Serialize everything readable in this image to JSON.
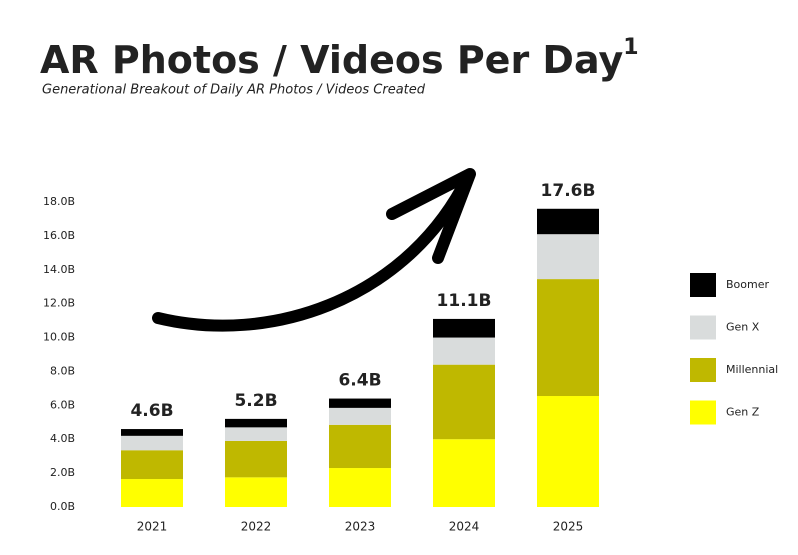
{
  "chart_data": {
    "type": "stacked-bar",
    "title": "AR Photos / Videos Per Day",
    "title_note": "1",
    "subtitle": "Generational Breakout of Daily AR Photos / Videos Created",
    "categories": [
      "2021",
      "2022",
      "2023",
      "2024",
      "2025"
    ],
    "series": [
      {
        "name": "Gen Z",
        "color": "#ffff00",
        "values": [
          1.65,
          1.75,
          2.3,
          4.0,
          6.55
        ]
      },
      {
        "name": "Millennial",
        "color": "#bfb800",
        "values": [
          1.7,
          2.15,
          2.55,
          4.4,
          6.9
        ]
      },
      {
        "name": "Gen X",
        "color": "#d9dcdc",
        "values": [
          0.85,
          0.8,
          1.0,
          1.6,
          2.65
        ]
      },
      {
        "name": "Boomer",
        "color": "#000000",
        "values": [
          0.4,
          0.5,
          0.55,
          1.1,
          1.5
        ]
      }
    ],
    "totals": {
      "values": [
        4.6,
        5.2,
        6.4,
        11.1,
        17.6
      ],
      "value_labels": [
        "4.6B",
        "5.2B",
        "6.4B",
        "11.1B",
        "17.6B"
      ]
    },
    "ylim": [
      0,
      18
    ],
    "yticks": [
      {
        "value": 0,
        "label": "0.0B"
      },
      {
        "value": 2,
        "label": "2.0B"
      },
      {
        "value": 4,
        "label": "4.0B"
      },
      {
        "value": 6,
        "label": "6.0B"
      },
      {
        "value": 8,
        "label": "8.0B"
      },
      {
        "value": 10,
        "label": "10.0B"
      },
      {
        "value": 12,
        "label": "12.0B"
      },
      {
        "value": 14,
        "label": "14.0B"
      },
      {
        "value": 16,
        "label": "16.0B"
      },
      {
        "value": 18,
        "label": "18.0B"
      }
    ],
    "grid": false,
    "legend": "right"
  }
}
